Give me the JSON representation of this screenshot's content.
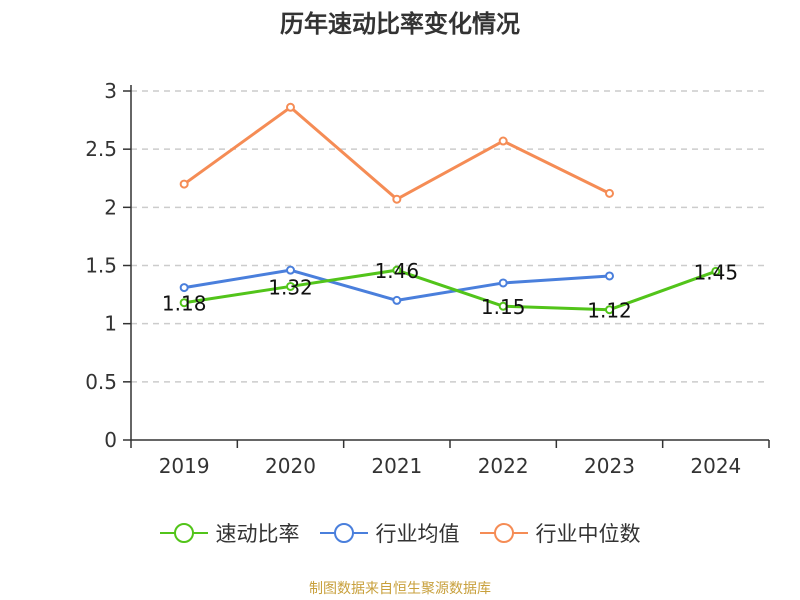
{
  "title": "历年速动比率变化情况",
  "source": "制图数据来自恒生聚源数据库",
  "chart_data": {
    "type": "line",
    "title": "历年速动比率变化情况",
    "categories": [
      "2019",
      "2020",
      "2021",
      "2022",
      "2023",
      "2024"
    ],
    "ylim": [
      0,
      3
    ],
    "yticks": [
      "0",
      "0.5",
      "1",
      "1.5",
      "2",
      "2.5",
      "3"
    ],
    "grid": true,
    "legend_position": "bottom",
    "series": [
      {
        "name": "速动比率",
        "color": "#52c41a",
        "values": [
          1.18,
          1.32,
          1.46,
          1.15,
          1.12,
          1.45
        ],
        "data_labels": [
          "1.18",
          "1.32",
          "1.46",
          "1.15",
          "1.12",
          "1.45"
        ]
      },
      {
        "name": "行业均值",
        "color": "#4a7fdc",
        "values": [
          1.31,
          1.46,
          1.2,
          1.35,
          1.41,
          null
        ]
      },
      {
        "name": "行业中位数",
        "color": "#f58c55",
        "values": [
          2.2,
          2.86,
          2.07,
          2.57,
          2.12,
          null
        ]
      }
    ]
  }
}
